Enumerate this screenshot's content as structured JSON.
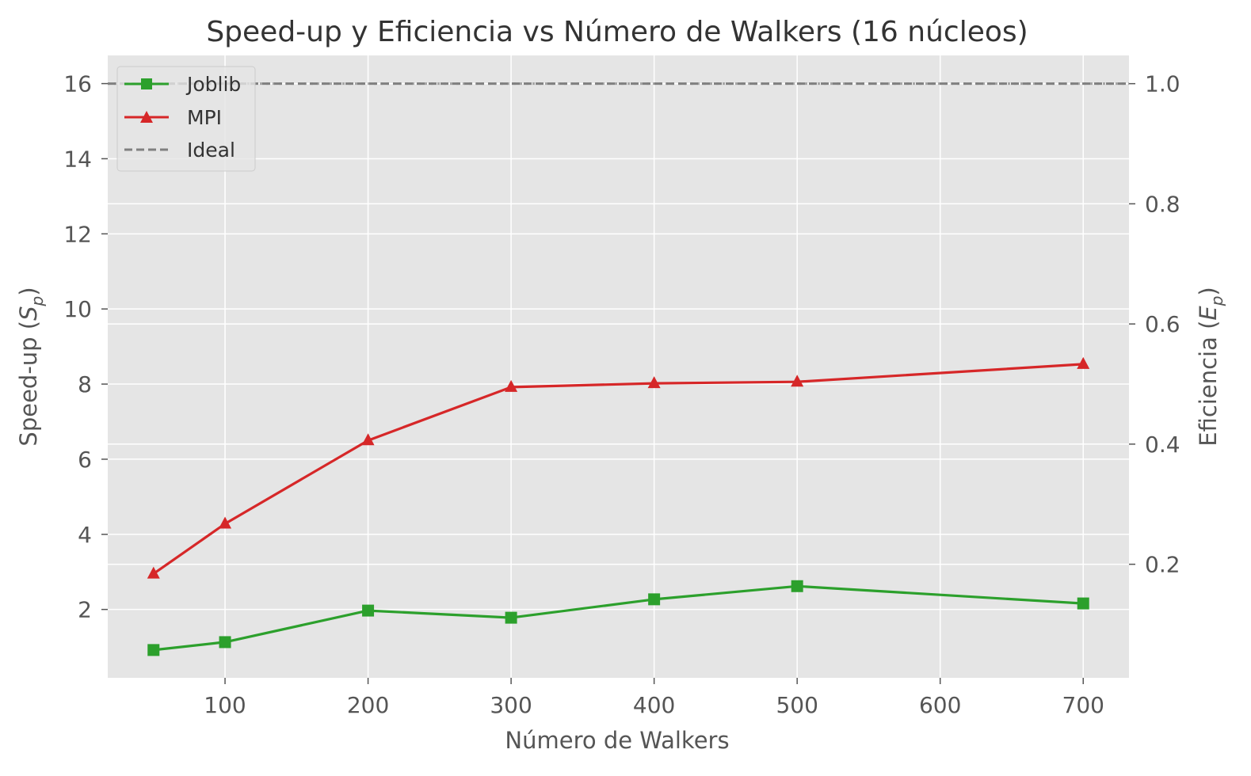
{
  "chart_data": {
    "type": "line",
    "title": "Speed-up y Eficiencia vs Número de Walkers (16 núcleos)",
    "xlabel": "Número de Walkers",
    "ylabel": "Speed-up (Sp)",
    "ylabel_main": "Speed-up (",
    "ylabel_var": "S",
    "ylabel_sub": "p",
    "ylabel_close": ")",
    "y2label": "Eficiencia (Ep)",
    "y2label_main": "Eficiencia (",
    "y2label_var": "E",
    "y2label_sub": "p",
    "y2label_close": ")",
    "xlim": [
      18,
      732
    ],
    "ylim": [
      0.18,
      16.75
    ],
    "y2lim": [
      0.011,
      1.047
    ],
    "xticks": [
      100,
      200,
      300,
      400,
      500,
      600,
      700
    ],
    "yticks": [
      2,
      4,
      6,
      8,
      10,
      12,
      14,
      16
    ],
    "y2ticks": [
      0.2,
      0.4,
      0.6,
      0.8,
      1.0
    ],
    "y2tick_labels": [
      "0.2",
      "0.4",
      "0.6",
      "0.8",
      "1.0"
    ],
    "grid": true,
    "legend_position": "top-left",
    "series": [
      {
        "name": "Joblib",
        "color": "#2ca02c",
        "marker": "square",
        "x": [
          50,
          100,
          200,
          300,
          400,
          500,
          700
        ],
        "values": [
          0.92,
          1.13,
          1.97,
          1.78,
          2.27,
          2.62,
          2.16
        ]
      },
      {
        "name": "MPI",
        "color": "#d62728",
        "marker": "triangle",
        "x": [
          50,
          100,
          200,
          300,
          400,
          500,
          700
        ],
        "values": [
          2.95,
          4.28,
          6.5,
          7.92,
          8.02,
          8.06,
          8.53
        ]
      }
    ],
    "reference_lines": [
      {
        "name": "Ideal",
        "color": "#808080",
        "style": "dashed",
        "y": 16
      }
    ]
  }
}
